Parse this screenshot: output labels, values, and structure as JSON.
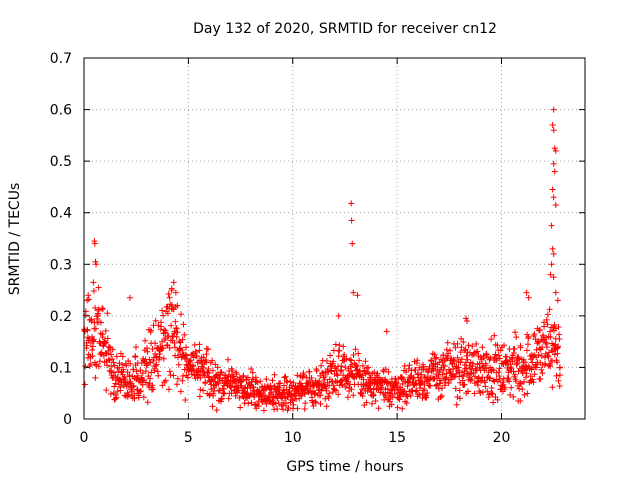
{
  "chart_data": {
    "type": "scatter",
    "title": "Day 132 of 2020, SRMTID for receiver cn12",
    "xlabel": "GPS time / hours",
    "ylabel": "SRMTID / TECUs",
    "xlim": [
      0,
      24
    ],
    "ylim": [
      0,
      0.7
    ],
    "xticks": [
      0,
      5,
      10,
      15,
      20
    ],
    "xtick_labels": [
      "0",
      "5",
      "10",
      "15",
      "20"
    ],
    "yticks": [
      0,
      0.1,
      0.2,
      0.3,
      0.4,
      0.5,
      0.6,
      0.7
    ],
    "ytick_labels": [
      "0",
      "0.1",
      "0.2",
      "0.3",
      "0.4",
      "0.5",
      "0.6",
      "0.7"
    ],
    "grid": true,
    "marker": "+",
    "color": "#ff0000",
    "series": [
      {
        "name": "cn12",
        "trend": [
          [
            0.0,
            0.18
          ],
          [
            0.3,
            0.16
          ],
          [
            0.6,
            0.16
          ],
          [
            1.0,
            0.14
          ],
          [
            1.5,
            0.08
          ],
          [
            2.0,
            0.07
          ],
          [
            2.5,
            0.08
          ],
          [
            3.0,
            0.1
          ],
          [
            3.5,
            0.12
          ],
          [
            4.0,
            0.16
          ],
          [
            4.3,
            0.17
          ],
          [
            4.6,
            0.13
          ],
          [
            5.0,
            0.1
          ],
          [
            5.5,
            0.09
          ],
          [
            6.0,
            0.08
          ],
          [
            6.5,
            0.07
          ],
          [
            7.0,
            0.07
          ],
          [
            7.5,
            0.06
          ],
          [
            8.0,
            0.06
          ],
          [
            8.5,
            0.05
          ],
          [
            9.0,
            0.05
          ],
          [
            9.5,
            0.05
          ],
          [
            10.0,
            0.05
          ],
          [
            10.5,
            0.06
          ],
          [
            11.0,
            0.06
          ],
          [
            11.5,
            0.07
          ],
          [
            12.0,
            0.1
          ],
          [
            12.5,
            0.1
          ],
          [
            13.0,
            0.08
          ],
          [
            13.5,
            0.07
          ],
          [
            14.0,
            0.06
          ],
          [
            14.5,
            0.06
          ],
          [
            15.0,
            0.06
          ],
          [
            15.5,
            0.07
          ],
          [
            16.0,
            0.08
          ],
          [
            16.5,
            0.08
          ],
          [
            17.0,
            0.09
          ],
          [
            17.5,
            0.09
          ],
          [
            18.0,
            0.1
          ],
          [
            18.5,
            0.1
          ],
          [
            19.0,
            0.1
          ],
          [
            19.5,
            0.1
          ],
          [
            20.0,
            0.09
          ],
          [
            20.5,
            0.1
          ],
          [
            21.0,
            0.1
          ],
          [
            21.5,
            0.12
          ],
          [
            22.0,
            0.13
          ],
          [
            22.5,
            0.15
          ],
          [
            22.8,
            0.12
          ]
        ],
        "outliers": [
          [
            0.5,
            0.345
          ],
          [
            0.52,
            0.34
          ],
          [
            0.55,
            0.305
          ],
          [
            0.58,
            0.3
          ],
          [
            0.45,
            0.265
          ],
          [
            0.7,
            0.255
          ],
          [
            0.2,
            0.24
          ],
          [
            0.15,
            0.23
          ],
          [
            4.3,
            0.265
          ],
          [
            4.2,
            0.25
          ],
          [
            4.4,
            0.245
          ],
          [
            4.1,
            0.235
          ],
          [
            2.2,
            0.235
          ],
          [
            12.8,
            0.418
          ],
          [
            12.82,
            0.385
          ],
          [
            12.85,
            0.34
          ],
          [
            12.9,
            0.245
          ],
          [
            13.1,
            0.24
          ],
          [
            12.2,
            0.2
          ],
          [
            14.5,
            0.17
          ],
          [
            18.3,
            0.195
          ],
          [
            18.35,
            0.19
          ],
          [
            21.2,
            0.245
          ],
          [
            21.3,
            0.235
          ],
          [
            20.8,
            0.035
          ],
          [
            20.9,
            0.035
          ],
          [
            22.5,
            0.6
          ],
          [
            22.45,
            0.57
          ],
          [
            22.5,
            0.56
          ],
          [
            22.55,
            0.525
          ],
          [
            22.6,
            0.52
          ],
          [
            22.5,
            0.495
          ],
          [
            22.55,
            0.48
          ],
          [
            22.45,
            0.445
          ],
          [
            22.5,
            0.43
          ],
          [
            22.6,
            0.415
          ],
          [
            22.4,
            0.375
          ],
          [
            22.45,
            0.33
          ],
          [
            22.5,
            0.32
          ],
          [
            22.4,
            0.3
          ],
          [
            22.35,
            0.28
          ],
          [
            22.5,
            0.275
          ],
          [
            22.6,
            0.245
          ],
          [
            22.7,
            0.23
          ],
          [
            22.8,
            0.085
          ],
          [
            22.8,
            0.1
          ]
        ]
      }
    ]
  }
}
